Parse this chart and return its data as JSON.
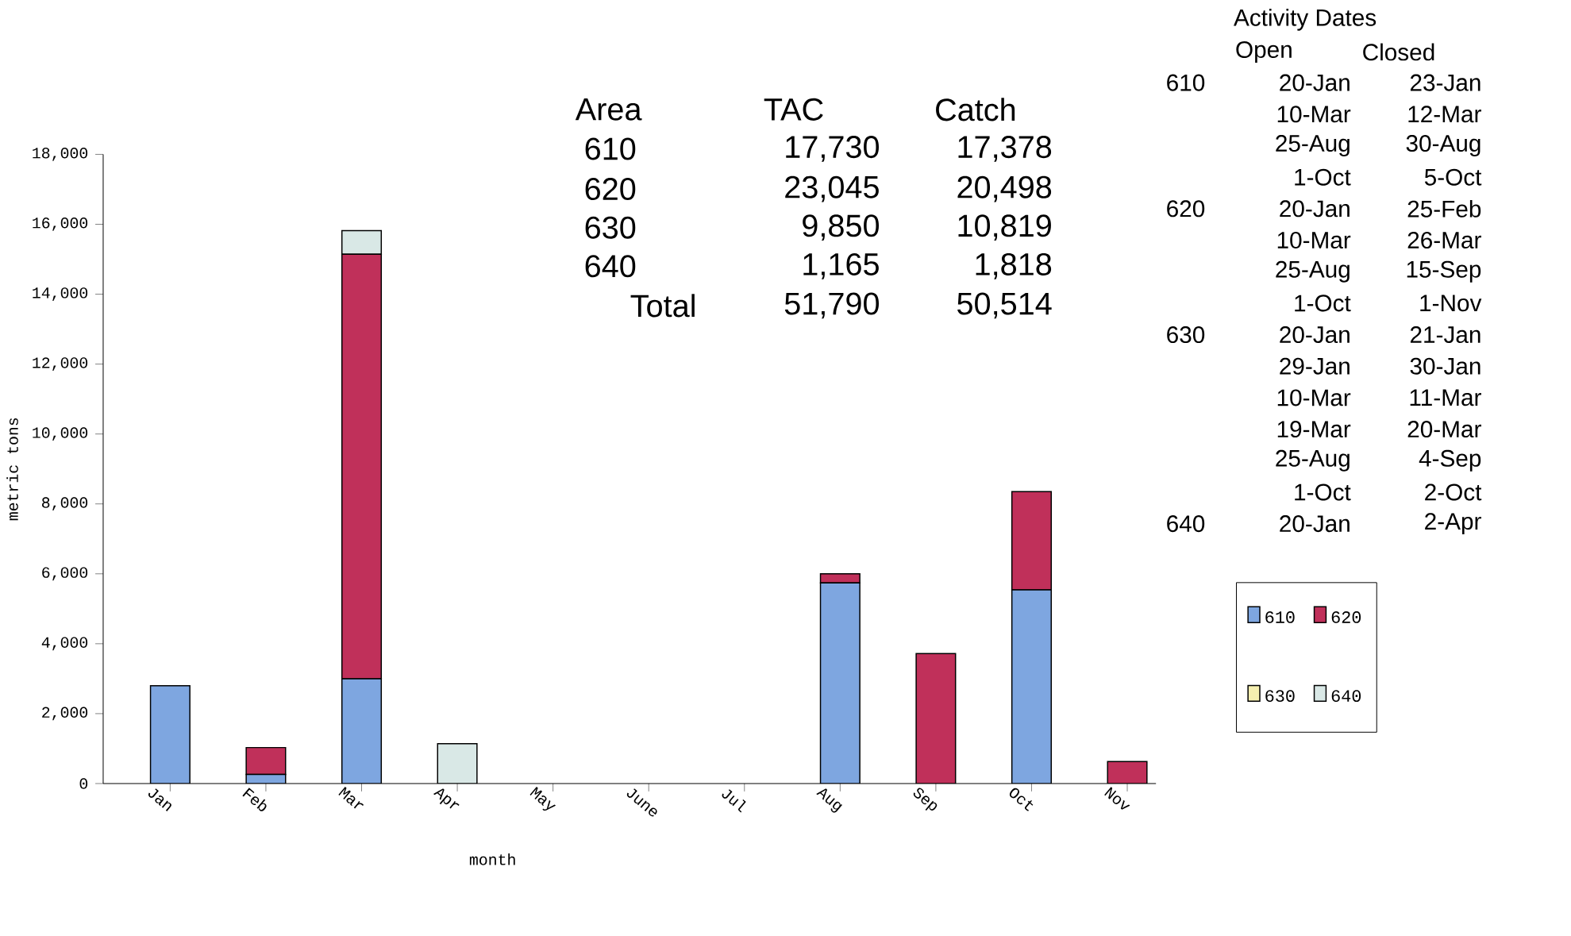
{
  "chart_data": {
    "type": "bar",
    "stacked": true,
    "categories": [
      "Jan",
      "Feb",
      "Mar",
      "Apr",
      "May",
      "June",
      "Jul",
      "Aug",
      "Sep",
      "Oct",
      "Nov"
    ],
    "series": [
      {
        "name": "610",
        "color": "#7ea6e0",
        "values": [
          2800,
          260,
          3000,
          0,
          0,
          0,
          0,
          5740,
          0,
          5540,
          0
        ]
      },
      {
        "name": "620",
        "color": "#c0305a",
        "values": [
          0,
          770,
          12140,
          0,
          0,
          0,
          0,
          260,
          3720,
          2810,
          630
        ]
      },
      {
        "name": "630",
        "color": "#f5efb0",
        "values": [
          0,
          0,
          0,
          0,
          0,
          0,
          0,
          0,
          0,
          0,
          0
        ]
      },
      {
        "name": "640",
        "color": "#d9e8e6",
        "values": [
          0,
          0,
          680,
          1140,
          0,
          0,
          0,
          0,
          0,
          0,
          0
        ]
      }
    ],
    "ylim": [
      0,
      18000
    ],
    "yticks": [
      0,
      {
        "value": 2000,
        "label": "2,000"
      },
      {
        "value": 4000,
        "label": "4,000"
      },
      {
        "value": 6000,
        "label": "6,000"
      },
      {
        "value": 8000,
        "label": "8,000"
      },
      {
        "value": 10000,
        "label": "10,000"
      },
      {
        "value": 12000,
        "label": "12,000"
      },
      {
        "value": 14000,
        "label": "14,000"
      },
      {
        "value": 16000,
        "label": "16,000"
      },
      {
        "value": 18000,
        "label": "18,000"
      }
    ],
    "xlabel": "month",
    "ylabel": "metric tons",
    "legend": "right",
    "annotations": [
      "Area",
      "TAC",
      "Catch",
      "610",
      "17,730",
      "17,378",
      "620",
      "23,045",
      "20,498",
      "630",
      "9,850",
      "10,819",
      "640",
      "1,165",
      "1,818",
      "Total",
      "51,790",
      "50,514",
      "Activity Dates",
      "Open",
      "Closed",
      "610",
      "620",
      "630",
      "640",
      "20-Jan",
      "23-Jan",
      "10-Mar",
      "12-Mar",
      "25-Aug",
      "30-Aug",
      "1-Oct",
      "5-Oct",
      "20-Jan",
      "25-Feb",
      "10-Mar",
      "26-Mar",
      "25-Aug",
      "15-Sep",
      "1-Oct",
      "1-Nov",
      "20-Jan",
      "21-Jan",
      "29-Jan",
      "30-Jan",
      "10-Mar",
      "11-Mar",
      "19-Mar",
      "20-Mar",
      "25-Aug",
      "4-Sep",
      "1-Oct",
      "2-Oct",
      "20-Jan",
      "2-Apr"
    ]
  }
}
